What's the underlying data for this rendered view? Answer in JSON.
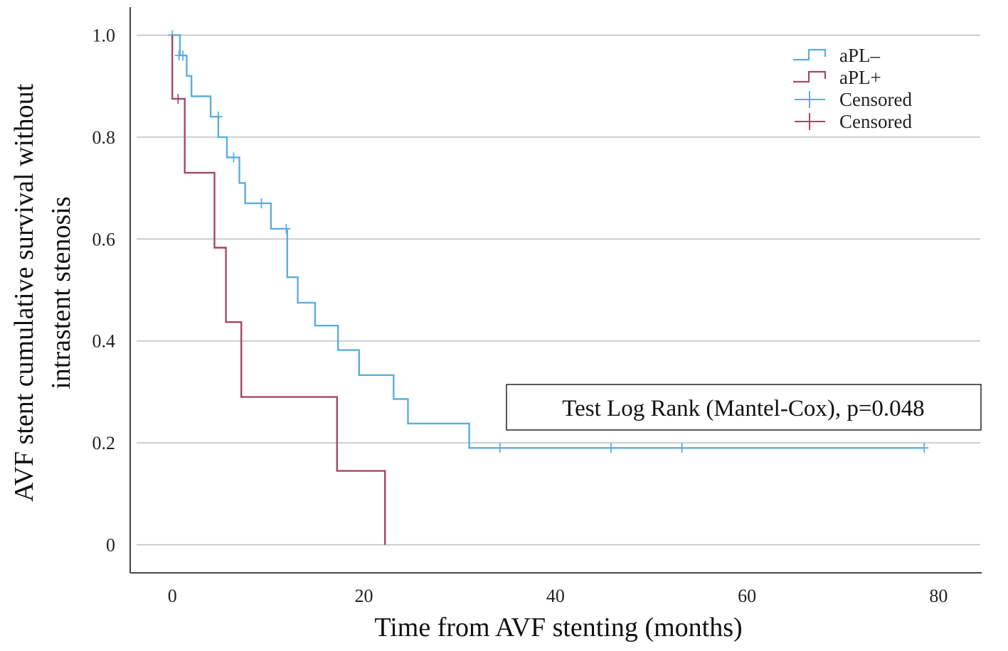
{
  "chart_data": {
    "type": "line",
    "subtype": "kaplan-meier-step",
    "title": "",
    "xlabel": "Time from AVF stenting (months)",
    "ylabel_lines": [
      "AVF stent cumulative survival without",
      "intrastent stenosis"
    ],
    "xlim": [
      -4.4,
      84.5
    ],
    "ylim": [
      -0.055,
      1.055
    ],
    "x_ticks": [
      {
        "value": 0,
        "label": "0"
      },
      {
        "value": 20,
        "label": "20"
      },
      {
        "value": 40,
        "label": "40"
      },
      {
        "value": 60,
        "label": "60"
      },
      {
        "value": 80,
        "label": "80"
      }
    ],
    "y_ticks": [
      {
        "value": 0,
        "label": "0"
      },
      {
        "value": 0.2,
        "label": "0.2"
      },
      {
        "value": 0.4,
        "label": "0.4"
      },
      {
        "value": 0.6,
        "label": "0.6"
      },
      {
        "value": 0.8,
        "label": "0.8"
      },
      {
        "value": 1.0,
        "label": "1.0"
      }
    ],
    "grid": "horizontal",
    "legend_position": "top-right",
    "legend": [
      {
        "label": "aPL–",
        "symbol": "step",
        "color": "#5aaedd"
      },
      {
        "label": "aPL+",
        "symbol": "step",
        "color": "#a84468"
      },
      {
        "label": "Censored",
        "symbol": "cross",
        "color": "#5aaedd"
      },
      {
        "label": "Censored",
        "symbol": "cross",
        "color": "#a84468"
      }
    ],
    "annotation": "Test Log Rank (Mantel-Cox), p=0.048",
    "series": [
      {
        "name": "aPL–",
        "color": "#5aaedd",
        "steps": [
          [
            0,
            1.0
          ],
          [
            0.8,
            0.96
          ],
          [
            1.5,
            0.92
          ],
          [
            2.0,
            0.88
          ],
          [
            4.0,
            0.84
          ],
          [
            4.8,
            0.8
          ],
          [
            5.7,
            0.76
          ],
          [
            7.0,
            0.71
          ],
          [
            7.6,
            0.67
          ],
          [
            10.3,
            0.62
          ],
          [
            12.0,
            0.525
          ],
          [
            13.1,
            0.475
          ],
          [
            14.9,
            0.43
          ],
          [
            17.3,
            0.382
          ],
          [
            19.5,
            0.333
          ],
          [
            23.1,
            0.286
          ],
          [
            24.6,
            0.238
          ],
          [
            31.0,
            0.19
          ],
          [
            78.5,
            0.19
          ]
        ],
        "censored": [
          [
            0,
            1.0
          ],
          [
            0.7,
            0.96
          ],
          [
            1.1,
            0.96
          ],
          [
            4.8,
            0.84
          ],
          [
            6.4,
            0.76
          ],
          [
            9.3,
            0.67
          ],
          [
            11.9,
            0.62
          ],
          [
            34.2,
            0.19
          ],
          [
            45.8,
            0.19
          ],
          [
            53.2,
            0.19
          ],
          [
            78.5,
            0.19
          ]
        ]
      },
      {
        "name": "aPL+",
        "color": "#a84468",
        "steps": [
          [
            0,
            1.0
          ],
          [
            0,
            0.875
          ],
          [
            1.3,
            0.73
          ],
          [
            4.4,
            0.583
          ],
          [
            5.6,
            0.437
          ],
          [
            7.2,
            0.29
          ],
          [
            17.2,
            0.145
          ],
          [
            22.2,
            0.0
          ]
        ],
        "censored": [
          [
            0.6,
            0.875
          ]
        ]
      }
    ]
  }
}
